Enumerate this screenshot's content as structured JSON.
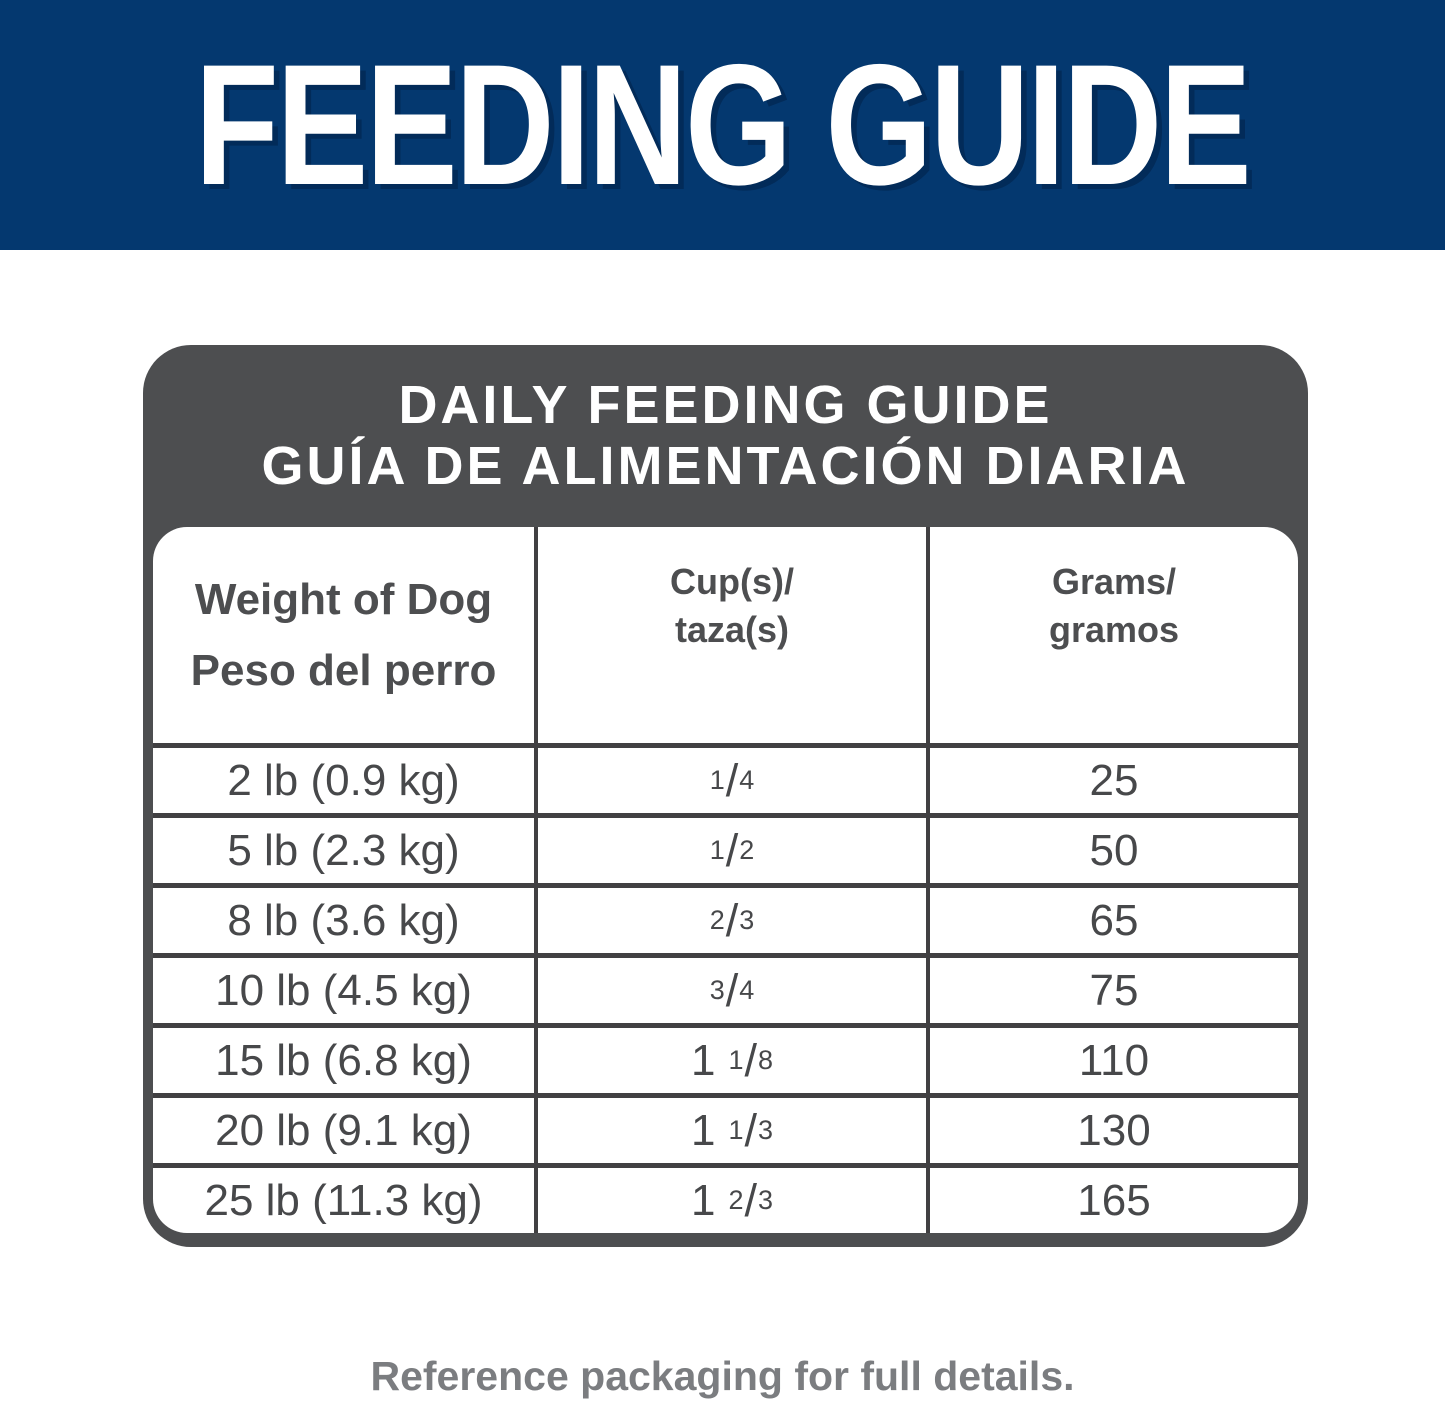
{
  "banner": {
    "title": "FEEDING GUIDE"
  },
  "card": {
    "title_en": "DAILY FEEDING GUIDE",
    "title_es": "GUÍA DE ALIMENTACIÓN DIARIA",
    "columns": [
      {
        "en": "Weight of Dog",
        "es": "Peso del perro"
      },
      {
        "en": "Cup(s)/",
        "es": "taza(s)"
      },
      {
        "en": "Grams/",
        "es": "gramos"
      }
    ],
    "rows": [
      {
        "weight": "2 lb (0.9 kg)",
        "cups": {
          "num": "1",
          "den": "4"
        },
        "grams": "25"
      },
      {
        "weight": "5 lb (2.3 kg)",
        "cups": {
          "num": "1",
          "den": "2"
        },
        "grams": "50"
      },
      {
        "weight": "8 lb (3.6 kg)",
        "cups": {
          "num": "2",
          "den": "3"
        },
        "grams": "65"
      },
      {
        "weight": "10 lb (4.5 kg)",
        "cups": {
          "num": "3",
          "den": "4"
        },
        "grams": "75"
      },
      {
        "weight": "15 lb (6.8 kg)",
        "cups": {
          "whole": "1",
          "num": "1",
          "den": "8"
        },
        "grams": "110"
      },
      {
        "weight": "20 lb (9.1 kg)",
        "cups": {
          "whole": "1",
          "num": "1",
          "den": "3"
        },
        "grams": "130"
      },
      {
        "weight": "25 lb (11.3 kg)",
        "cups": {
          "whole": "1",
          "num": "2",
          "den": "3"
        },
        "grams": "165"
      }
    ]
  },
  "glyphs": {
    "frac_slash": "/"
  },
  "footer": {
    "note": "Reference packaging for full details."
  },
  "colors": {
    "banner_bg": "#04386f",
    "banner_text": "#ffffff",
    "card_header_bg": "#4d4e50",
    "table_line": "#414042",
    "header_text": "#4d4e50",
    "data_text": "#47484a",
    "footer_text": "#7b7d80"
  }
}
